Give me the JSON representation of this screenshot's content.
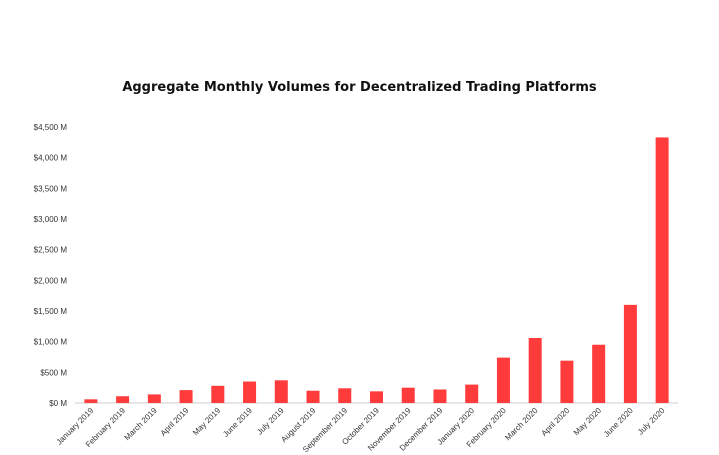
{
  "chart_data": {
    "type": "bar",
    "title": "Aggregate Monthly Volumes for Decentralized Trading Platforms",
    "xlabel": "",
    "ylabel": "",
    "categories": [
      "January 2019",
      "February 2019",
      "March 2019",
      "April 2019",
      "May 2019",
      "June 2019",
      "July 2019",
      "August 2019",
      "September 2019",
      "October 2019",
      "November 2019",
      "December 2019",
      "January 2020",
      "February 2020",
      "March 2020",
      "April 2020",
      "May 2020",
      "June 2020",
      "July 2020"
    ],
    "values": [
      60,
      110,
      140,
      210,
      280,
      350,
      370,
      200,
      240,
      190,
      250,
      220,
      300,
      740,
      1060,
      690,
      950,
      1600,
      4330
    ],
    "ylim": [
      0,
      4500
    ],
    "yticks": [
      0,
      500,
      1000,
      1500,
      2000,
      2500,
      3000,
      3500,
      4000,
      4500
    ],
    "ytick_labels": [
      "$0 M",
      "$500 M",
      "$1,000 M",
      "$1,500 M",
      "$2,000 M",
      "$2,500 M",
      "$3,000 M",
      "$3,500 M",
      "$4,000 M",
      "$4,500 M"
    ],
    "grid": false,
    "legend": "none",
    "bar_color": "#ff3b3b"
  }
}
